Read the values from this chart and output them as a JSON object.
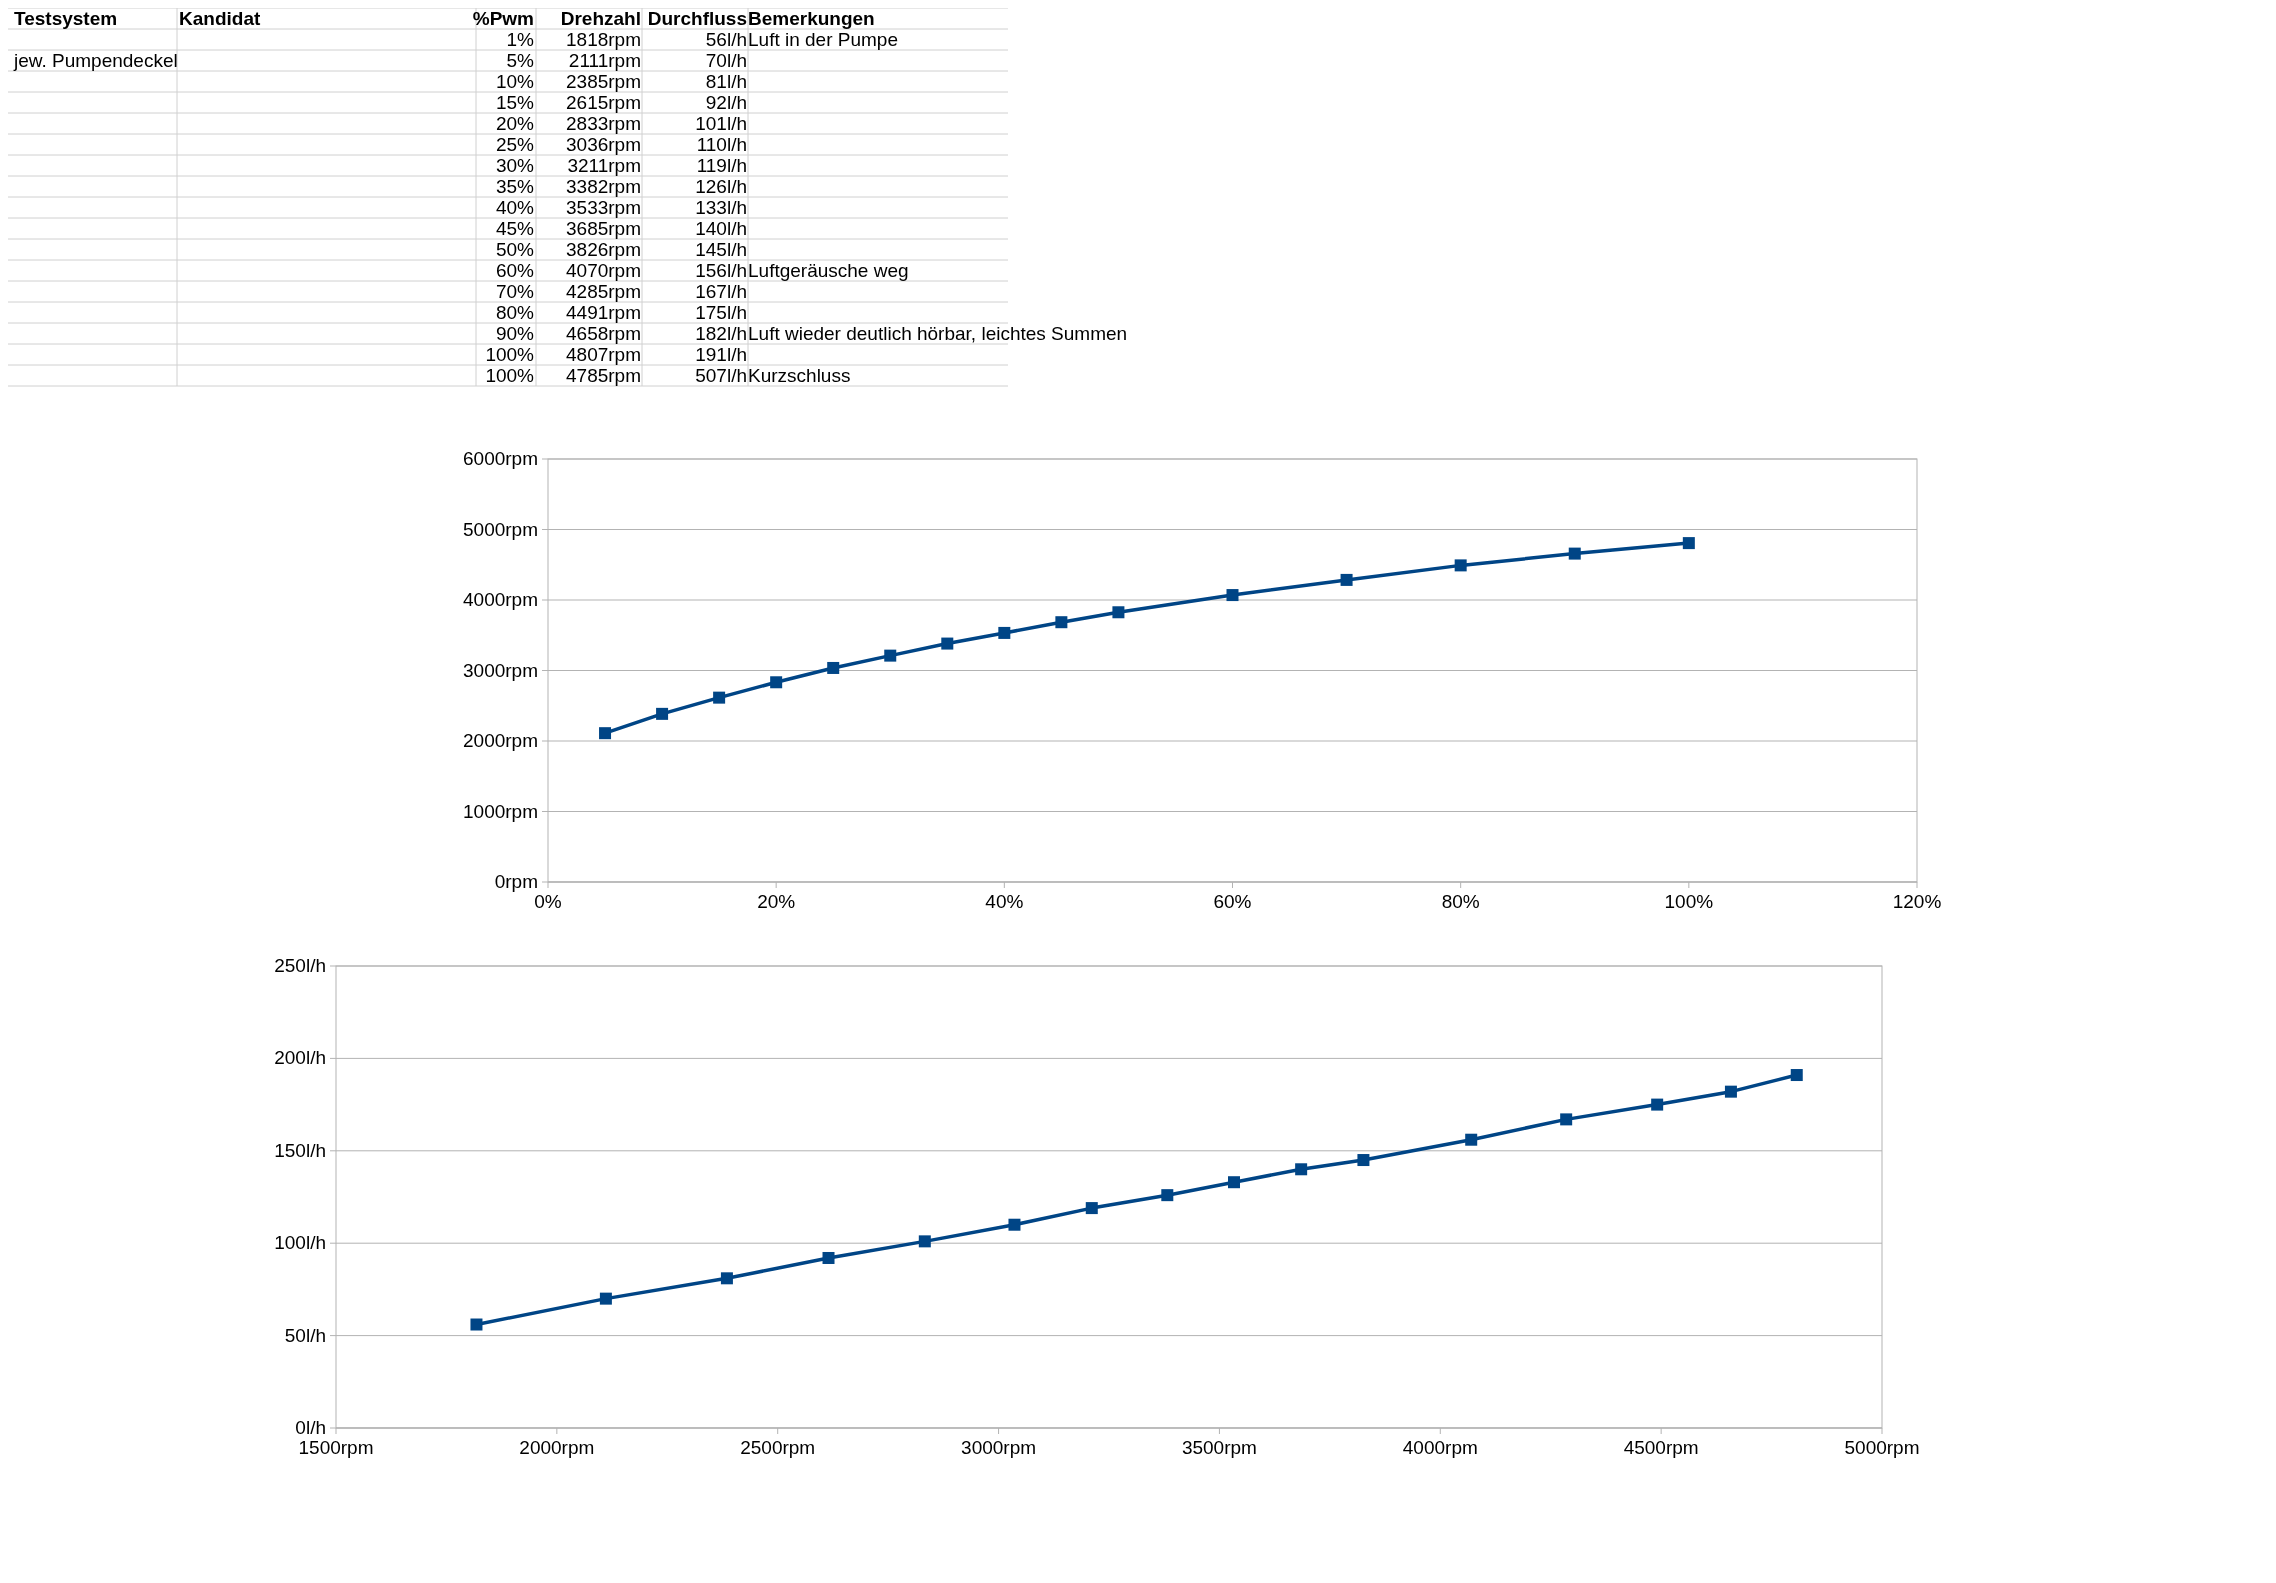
{
  "chart_data": [
    {
      "type": "other",
      "categories": [
        "Testsystem",
        "Kandidat",
        "%Pwm",
        "Drehzahl",
        "Durchfluss",
        "Bemerkungen"
      ],
      "cell_labels": [
        [
          null,
          null,
          "1%",
          "1818rpm",
          "56l/h",
          "Luft in der Pumpe"
        ],
        [
          "jew. Pumpendeckel",
          null,
          "5%",
          "2111rpm",
          "70l/h",
          null
        ],
        [
          null,
          null,
          "10%",
          "2385rpm",
          "81l/h",
          null
        ],
        [
          null,
          null,
          "15%",
          "2615rpm",
          "92l/h",
          null
        ],
        [
          null,
          null,
          "20%",
          "2833rpm",
          "101l/h",
          null
        ],
        [
          null,
          null,
          "25%",
          "3036rpm",
          "110l/h",
          null
        ],
        [
          null,
          null,
          "30%",
          "3211rpm",
          "119l/h",
          null
        ],
        [
          null,
          null,
          "35%",
          "3382rpm",
          "126l/h",
          null
        ],
        [
          null,
          null,
          "40%",
          "3533rpm",
          "133l/h",
          null
        ],
        [
          null,
          null,
          "45%",
          "3685rpm",
          "140l/h",
          null
        ],
        [
          null,
          null,
          "50%",
          "3826rpm",
          "145l/h",
          null
        ],
        [
          null,
          null,
          "60%",
          "4070rpm",
          "156l/h",
          "Luftgeräusche weg"
        ],
        [
          null,
          null,
          "70%",
          "4285rpm",
          "167l/h",
          null
        ],
        [
          null,
          null,
          "80%",
          "4491rpm",
          "175l/h",
          null
        ],
        [
          null,
          null,
          "90%",
          "4658rpm",
          "182l/h",
          "Luft wieder deutlich hörbar, leichtes Summen"
        ],
        [
          null,
          null,
          "100%",
          "4807rpm",
          "191l/h",
          null
        ],
        [
          null,
          null,
          "100%",
          "4785rpm",
          "507l/h",
          "Kurzschluss"
        ]
      ]
    },
    {
      "type": "line",
      "marker": "square",
      "grid": "y",
      "x": [
        5,
        10,
        15,
        20,
        25,
        30,
        35,
        40,
        45,
        50,
        60,
        70,
        80,
        90,
        100
      ],
      "series": [
        {
          "color": "#004586",
          "values": [
            2111,
            2385,
            2615,
            2833,
            3036,
            3211,
            3382,
            3533,
            3685,
            3826,
            4070,
            4285,
            4491,
            4658,
            4807
          ]
        }
      ],
      "xlim": [
        0,
        120
      ],
      "xticks": [
        {
          "value": 0,
          "label": "0%"
        },
        {
          "value": 20,
          "label": "20%"
        },
        {
          "value": 40,
          "label": "40%"
        },
        {
          "value": 60,
          "label": "60%"
        },
        {
          "value": 80,
          "label": "80%"
        },
        {
          "value": 100,
          "label": "100%"
        },
        {
          "value": 120,
          "label": "120%"
        }
      ],
      "ylim": [
        0,
        6000
      ],
      "yticks": [
        {
          "value": 0,
          "label": "0rpm"
        },
        {
          "value": 1000,
          "label": "1000rpm"
        },
        {
          "value": 2000,
          "label": "2000rpm"
        },
        {
          "value": 3000,
          "label": "3000rpm"
        },
        {
          "value": 4000,
          "label": "4000rpm"
        },
        {
          "value": 5000,
          "label": "5000rpm"
        },
        {
          "value": 6000,
          "label": "6000rpm"
        }
      ]
    },
    {
      "type": "line",
      "marker": "square",
      "grid": "y",
      "x": [
        1818,
        2111,
        2385,
        2615,
        2833,
        3036,
        3211,
        3382,
        3533,
        3685,
        3826,
        4070,
        4285,
        4491,
        4658,
        4807
      ],
      "series": [
        {
          "color": "#004586",
          "values": [
            56,
            70,
            81,
            92,
            101,
            110,
            119,
            126,
            133,
            140,
            145,
            156,
            167,
            175,
            182,
            191
          ]
        }
      ],
      "xlim": [
        1500,
        5000
      ],
      "xticks": [
        {
          "value": 1500,
          "label": "1500rpm"
        },
        {
          "value": 2000,
          "label": "2000rpm"
        },
        {
          "value": 2500,
          "label": "2500rpm"
        },
        {
          "value": 3000,
          "label": "3000rpm"
        },
        {
          "value": 3500,
          "label": "3500rpm"
        },
        {
          "value": 4000,
          "label": "4000rpm"
        },
        {
          "value": 4500,
          "label": "4500rpm"
        },
        {
          "value": 5000,
          "label": "5000rpm"
        }
      ],
      "ylim": [
        0,
        250
      ],
      "yticks": [
        {
          "value": 0,
          "label": "0l/h"
        },
        {
          "value": 50,
          "label": "50l/h"
        },
        {
          "value": 100,
          "label": "100l/h"
        },
        {
          "value": 150,
          "label": "150l/h"
        },
        {
          "value": 200,
          "label": "200l/h"
        },
        {
          "value": 250,
          "label": "250l/h"
        }
      ]
    }
  ]
}
